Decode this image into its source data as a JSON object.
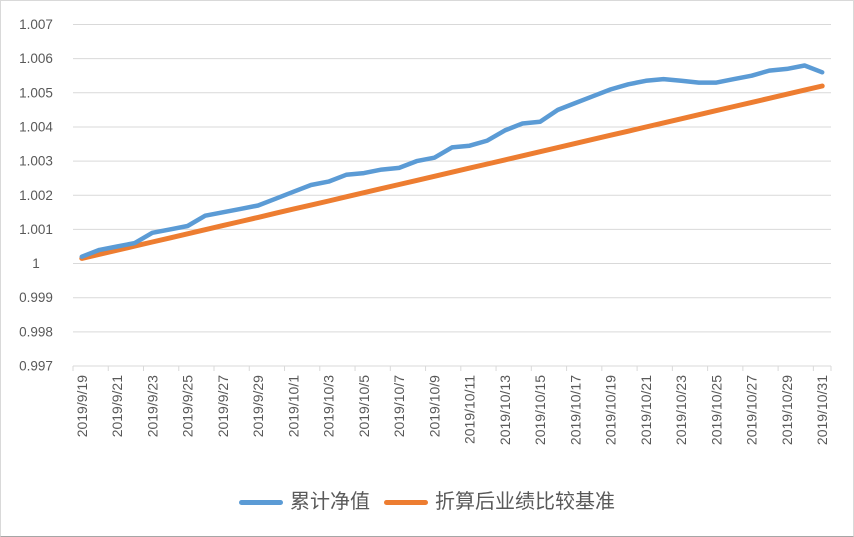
{
  "chart_data": {
    "type": "line",
    "title": "",
    "xlabel": "",
    "ylabel": "",
    "categories": [
      "2019/9/19",
      "2019/9/20",
      "2019/9/21",
      "2019/9/22",
      "2019/9/23",
      "2019/9/24",
      "2019/9/25",
      "2019/9/26",
      "2019/9/27",
      "2019/9/28",
      "2019/9/29",
      "2019/9/30",
      "2019/10/1",
      "2019/10/2",
      "2019/10/3",
      "2019/10/4",
      "2019/10/5",
      "2019/10/6",
      "2019/10/7",
      "2019/10/8",
      "2019/10/9",
      "2019/10/10",
      "2019/10/11",
      "2019/10/12",
      "2019/10/13",
      "2019/10/14",
      "2019/10/15",
      "2019/10/16",
      "2019/10/17",
      "2019/10/18",
      "2019/10/19",
      "2019/10/20",
      "2019/10/21",
      "2019/10/22",
      "2019/10/23",
      "2019/10/24",
      "2019/10/25",
      "2019/10/26",
      "2019/10/27",
      "2019/10/28",
      "2019/10/29",
      "2019/10/30",
      "2019/10/31"
    ],
    "x_label_every": 2,
    "series": [
      {
        "name": "累计净值",
        "color": "#5B9BD5",
        "width": 4.5,
        "values": [
          1.0002,
          1.0004,
          1.0005,
          1.0006,
          1.0009,
          1.001,
          1.0011,
          1.0014,
          1.0015,
          1.0016,
          1.0017,
          1.0019,
          1.0021,
          1.0023,
          1.0024,
          1.0026,
          1.00265,
          1.00275,
          1.0028,
          1.003,
          1.0031,
          1.0034,
          1.00345,
          1.0036,
          1.0039,
          1.0041,
          1.00415,
          1.0045,
          1.0047,
          1.0049,
          1.0051,
          1.00525,
          1.00535,
          1.0054,
          1.00535,
          1.0053,
          1.0053,
          1.0054,
          1.0055,
          1.00565,
          1.0057,
          1.0058,
          1.0056
        ]
      },
      {
        "name": "折算后业绩比较基准",
        "color": "#ED7D31",
        "width": 5,
        "values": [
          1.00015,
          1.00027,
          1.00039,
          1.000511,
          1.000631,
          1.000751,
          1.000871,
          1.000992,
          1.001112,
          1.001232,
          1.001352,
          1.001473,
          1.001593,
          1.001713,
          1.001833,
          1.001954,
          1.002074,
          1.002194,
          1.002314,
          1.002435,
          1.002555,
          1.002675,
          1.002795,
          1.002916,
          1.003036,
          1.003156,
          1.003276,
          1.003396,
          1.003517,
          1.003637,
          1.003757,
          1.003877,
          1.003998,
          1.004118,
          1.004238,
          1.004358,
          1.004479,
          1.004599,
          1.004719,
          1.004839,
          1.00496,
          1.00508,
          1.0052
        ]
      }
    ],
    "ylim": [
      0.997,
      1.007
    ],
    "y_ticks": [
      0.997,
      0.998,
      0.999,
      1.0,
      1.001,
      1.002,
      1.003,
      1.004,
      1.005,
      1.006,
      1.007
    ],
    "y_tick_labels": [
      "0.997",
      "0.998",
      "0.999",
      "1",
      "1.001",
      "1.002",
      "1.003",
      "1.004",
      "1.005",
      "1.006",
      "1.007"
    ],
    "grid": "horizontal",
    "legend_position": "bottom",
    "axis_text_color": "#595959",
    "gridline_color": "#D9D9D9"
  }
}
